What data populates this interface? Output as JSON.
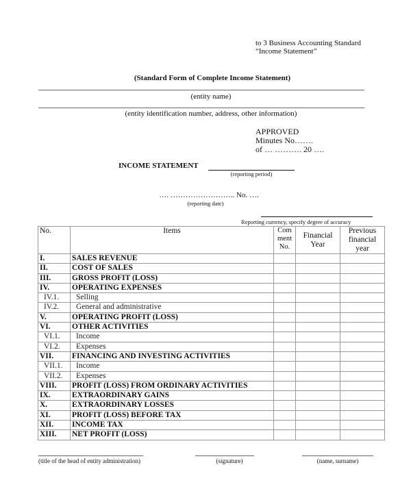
{
  "header": {
    "annex_line1": "to 3 Business Accounting Standard",
    "annex_line2": "“Income Statement”",
    "form_title": "(Standard Form of Complete Income Statement)",
    "entity_name_label": "(entity name)",
    "entity_info_label": "(entity identification number, address, other information)",
    "approved": "APPROVED",
    "minutes": "Minutes No…….",
    "of_date": "of … ………. 20 ….",
    "statement_title": "INCOME STATEMENT",
    "reporting_period_label": "(reporting period)",
    "date_line": "…. ……………………..  No. ….",
    "reporting_date_label": "(reporting date)",
    "currency_label": "Reporting currency, specify degree of accuracy"
  },
  "table": {
    "columns": [
      "No.",
      "Items",
      "Com ment No.",
      "Financial Year",
      "Previous financial year"
    ],
    "rows": [
      {
        "no": "I.",
        "item": "SALES REVENUE",
        "bold": true
      },
      {
        "no": "II.",
        "item": "COST OF SALES",
        "bold": true
      },
      {
        "no": "III.",
        "item": "GROSS PROFIT (LOSS)",
        "bold": true
      },
      {
        "no": "IV.",
        "item": "OPERATING EXPENSES",
        "bold": true
      },
      {
        "no": "IV.1.",
        "item": "Selling",
        "bold": false
      },
      {
        "no": "IV.2.",
        "item": "General and administrative",
        "bold": false
      },
      {
        "no": "V.",
        "item": "OPERATING PROFIT (LOSS)",
        "bold": true
      },
      {
        "no": "VI.",
        "item": "OTHER ACTIVITIES",
        "bold": true
      },
      {
        "no": "VI.1.",
        "item": "Income",
        "bold": false
      },
      {
        "no": "VI.2.",
        "item": "Expenses",
        "bold": false
      },
      {
        "no": "VII.",
        "item": "FINANCING AND INVESTING ACTIVITIES",
        "bold": true
      },
      {
        "no": "VII.1.",
        "item": "Income",
        "bold": false
      },
      {
        "no": "VII.2.",
        "item": "Expenses",
        "bold": false
      },
      {
        "no": "VIII.",
        "item": "PROFIT (LOSS) FROM ORDINARY ACTIVITIES",
        "bold": true
      },
      {
        "no": "IX.",
        "item": "EXTRAORDINARY GAINS",
        "bold": true
      },
      {
        "no": "X.",
        "item": "EXTRAORDINARY LOSSES",
        "bold": true
      },
      {
        "no": "XI.",
        "item": "PROFIT (LOSS) BEFORE TAX",
        "bold": true
      },
      {
        "no": "XII.",
        "item": "INCOME TAX",
        "bold": true
      },
      {
        "no": "XIII.",
        "item": "NET PROFIT (LOSS)",
        "bold": true
      }
    ]
  },
  "footer": {
    "head_title_label": "(title of the head of entity  administration)",
    "signature_label": "(signature)",
    "name_label": "(name, surname)"
  }
}
